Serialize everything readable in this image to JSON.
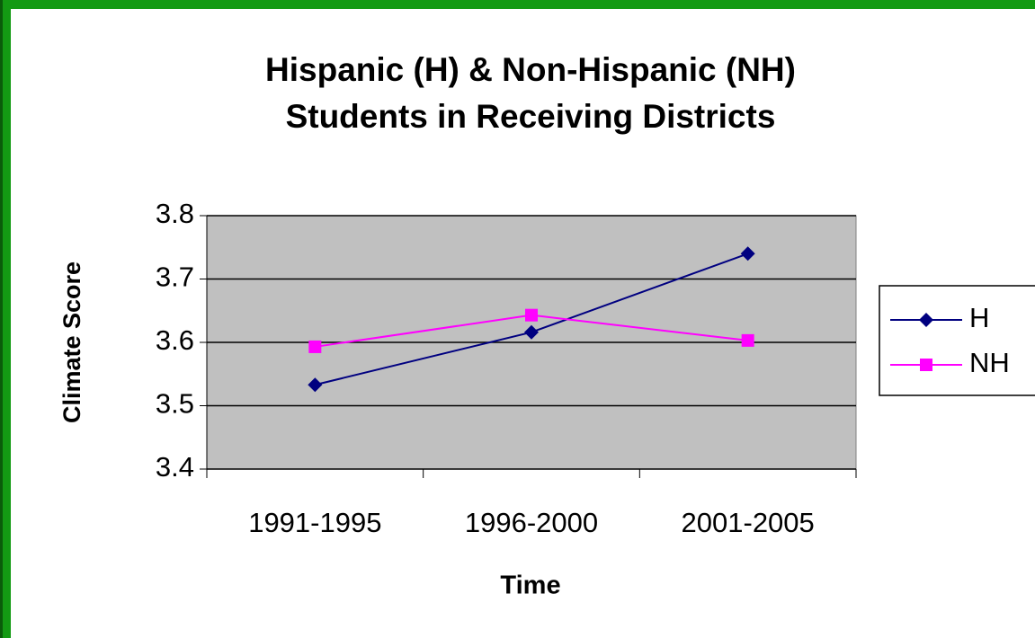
{
  "chart_data": {
    "type": "line",
    "title": [
      "Hispanic (H) & Non-Hispanic (NH)",
      "Students in Receiving Districts"
    ],
    "x_label": "Time",
    "y_label": "Climate Score",
    "categories": [
      "1991-1995",
      "1996-2000",
      "2001-2005"
    ],
    "series": [
      {
        "name": "H",
        "color": "#000080",
        "marker": "diamond",
        "values": [
          3.533,
          3.616,
          3.74
        ]
      },
      {
        "name": "NH",
        "color": "#ff00ff",
        "marker": "square",
        "values": [
          3.593,
          3.643,
          3.603
        ]
      }
    ],
    "ylim": [
      3.4,
      3.8
    ],
    "yticks": [
      3.4,
      3.5,
      3.6,
      3.7,
      3.8
    ],
    "grid": true,
    "legend": "right",
    "plot_background": "#c0c0c0"
  }
}
